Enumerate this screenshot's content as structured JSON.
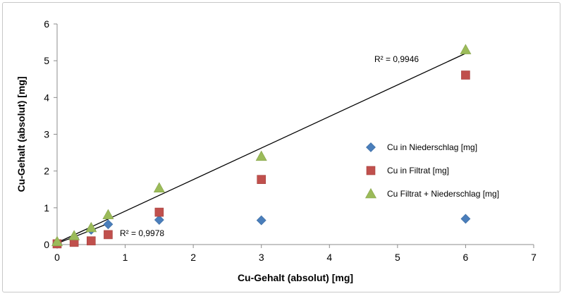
{
  "chart_data": {
    "type": "scatter",
    "xlabel": "Cu-Gehalt (absolut) [mg]",
    "ylabel": "Cu-Gehalt (absolut) [mg]",
    "xlim": [
      0,
      7
    ],
    "ylim": [
      0,
      6
    ],
    "xticks": [
      "0",
      "1",
      "2",
      "3",
      "4",
      "5",
      "6",
      "7"
    ],
    "yticks": [
      "0",
      "1",
      "2",
      "3",
      "4",
      "5",
      "6"
    ],
    "grid": false,
    "legend_position": "right",
    "series": [
      {
        "name": "Cu in Niederschlag [mg]",
        "marker": "diamond",
        "color": "#4a7ebb",
        "x": [
          0,
          0.25,
          0.5,
          0.75,
          1.5,
          3,
          6
        ],
        "y": [
          0.02,
          0.18,
          0.4,
          0.55,
          0.67,
          0.66,
          0.7
        ]
      },
      {
        "name": "Cu in Filtrat [mg]",
        "marker": "square",
        "color": "#c0504d",
        "x": [
          0,
          0.25,
          0.5,
          0.75,
          1.5,
          3,
          6
        ],
        "y": [
          0.02,
          0.06,
          0.1,
          0.27,
          0.88,
          1.77,
          4.61
        ]
      },
      {
        "name": "Cu Filtrat + Niederschlag [mg]",
        "marker": "triangle",
        "color": "#9bbb59",
        "x": [
          0,
          0.25,
          0.5,
          0.75,
          1.5,
          3,
          6
        ],
        "y": [
          0.08,
          0.24,
          0.46,
          0.81,
          1.54,
          2.4,
          5.3
        ]
      }
    ],
    "trendlines": [
      {
        "x": [
          0,
          6
        ],
        "y": [
          0.05,
          5.2
        ],
        "r2_label": "R² = 0,9946"
      },
      {
        "x": [
          0,
          0.75
        ],
        "y": [
          0.03,
          0.57
        ],
        "r2_label": "R² = 0,9978"
      }
    ]
  }
}
